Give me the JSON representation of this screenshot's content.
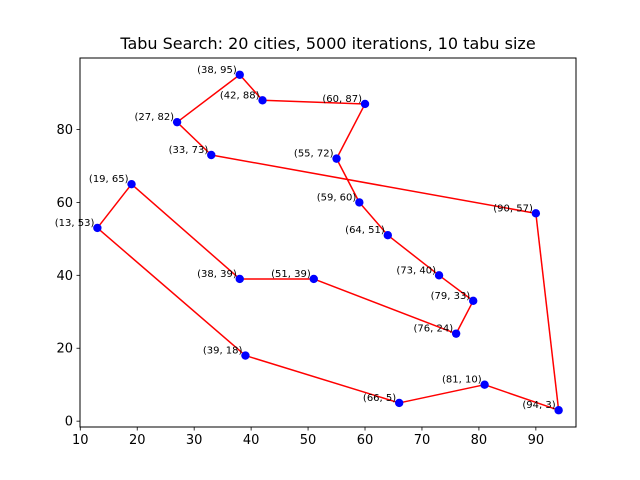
{
  "chart_data": {
    "type": "line",
    "title": "Tabu Search: 20 cities, 5000 iterations, 10 tabu size",
    "xlabel": "",
    "ylabel": "",
    "xlim": [
      9.95,
      97.05
    ],
    "ylim": [
      -1.6,
      99.6
    ],
    "xticks": [
      10,
      20,
      30,
      40,
      50,
      60,
      70,
      80,
      90
    ],
    "yticks": [
      0,
      20,
      40,
      60,
      80
    ],
    "grid": false,
    "route_color": "#ff0000",
    "point_color": "#0000ff",
    "points": [
      {
        "x": 38,
        "y": 95,
        "label": "(38, 95)"
      },
      {
        "x": 42,
        "y": 88,
        "label": "(42, 88)"
      },
      {
        "x": 60,
        "y": 87,
        "label": "(60, 87)"
      },
      {
        "x": 55,
        "y": 72,
        "label": "(55, 72)"
      },
      {
        "x": 59,
        "y": 60,
        "label": "(59, 60)"
      },
      {
        "x": 64,
        "y": 51,
        "label": "(64, 51)"
      },
      {
        "x": 73,
        "y": 40,
        "label": "(73, 40)"
      },
      {
        "x": 79,
        "y": 33,
        "label": "(79, 33)"
      },
      {
        "x": 76,
        "y": 24,
        "label": "(76, 24)"
      },
      {
        "x": 51,
        "y": 39,
        "label": "(51, 39)"
      },
      {
        "x": 38,
        "y": 39,
        "label": "(38, 39)"
      },
      {
        "x": 19,
        "y": 65,
        "label": "(19, 65)"
      },
      {
        "x": 13,
        "y": 53,
        "label": "(13, 53)"
      },
      {
        "x": 39,
        "y": 18,
        "label": "(39, 18)"
      },
      {
        "x": 66,
        "y": 5,
        "label": "(66, 5)"
      },
      {
        "x": 81,
        "y": 10,
        "label": "(81, 10)"
      },
      {
        "x": 94,
        "y": 3,
        "label": "(94, 3)"
      },
      {
        "x": 90,
        "y": 57,
        "label": "(90, 57)"
      },
      {
        "x": 33,
        "y": 73,
        "label": "(33, 73)"
      },
      {
        "x": 27,
        "y": 82,
        "label": "(27, 82)"
      }
    ],
    "closed_route": true
  }
}
